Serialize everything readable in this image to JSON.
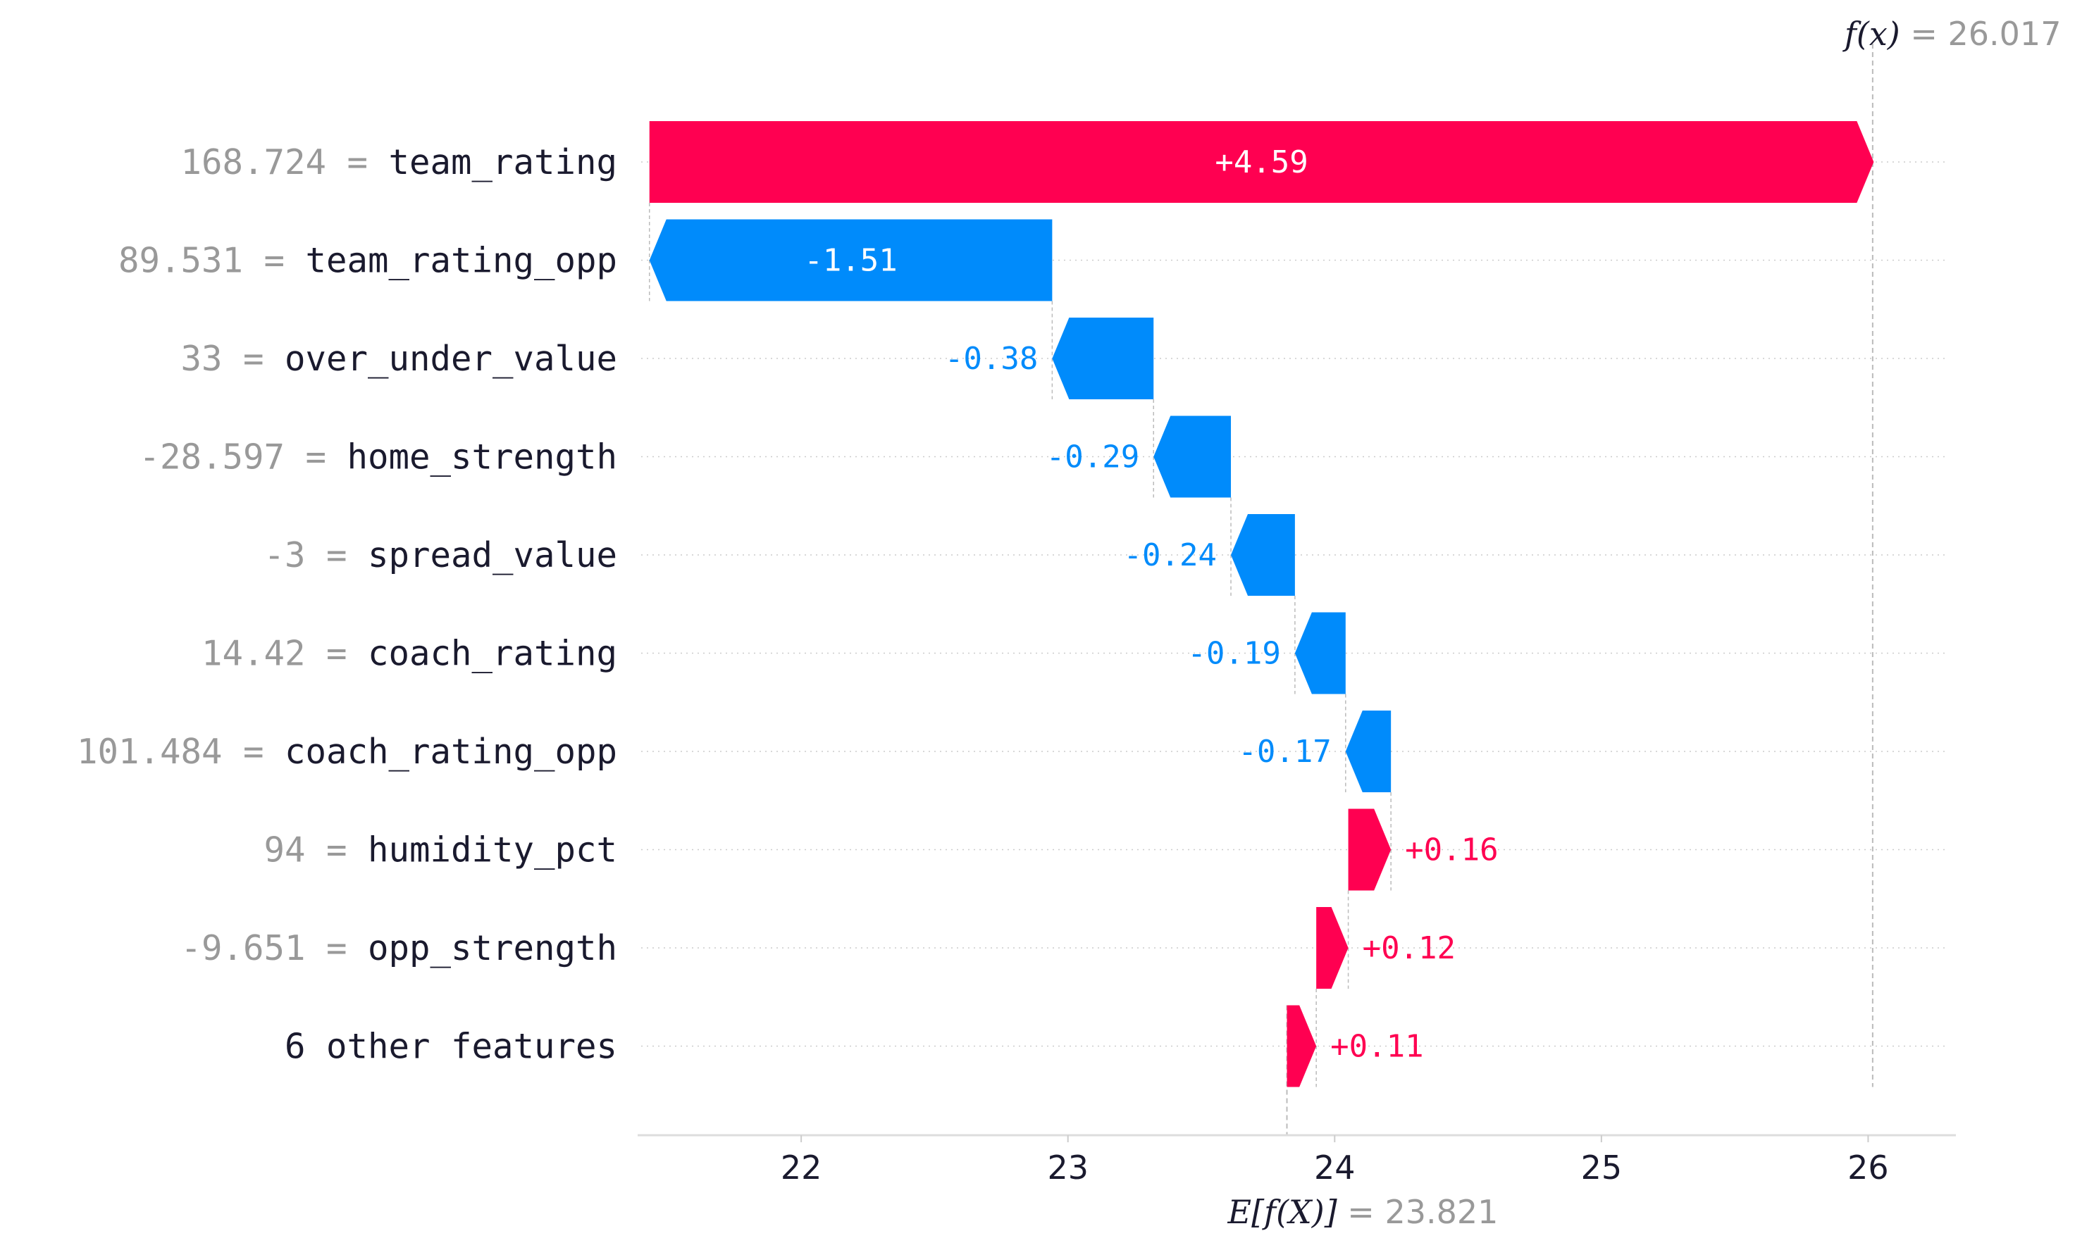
{
  "chart_data": {
    "type": "waterfall",
    "base_value": 23.821,
    "output_value": 26.017,
    "base_label": "E[f(X)]",
    "output_label": "f(x)",
    "base_value_text": "= 23.821",
    "output_value_text": "= 26.017",
    "xlim": [
      21.4,
      26.3
    ],
    "xticks": [
      22,
      23,
      24,
      25,
      26
    ],
    "xtick_labels": [
      "22",
      "23",
      "24",
      "25",
      "26"
    ],
    "features": [
      {
        "value_text": "168.724",
        "name": "team_rating",
        "contribution": 4.59,
        "label": "+4.59"
      },
      {
        "value_text": "89.531",
        "name": "team_rating_opp",
        "contribution": -1.51,
        "label": "-1.51"
      },
      {
        "value_text": "33",
        "name": "over_under_value",
        "contribution": -0.38,
        "label": "-0.38"
      },
      {
        "value_text": "-28.597",
        "name": "home_strength",
        "contribution": -0.29,
        "label": "-0.29"
      },
      {
        "value_text": "-3",
        "name": "spread_value",
        "contribution": -0.24,
        "label": "-0.24"
      },
      {
        "value_text": "14.42",
        "name": "coach_rating",
        "contribution": -0.19,
        "label": "-0.19"
      },
      {
        "value_text": "101.484",
        "name": "coach_rating_opp",
        "contribution": -0.17,
        "label": "-0.17"
      },
      {
        "value_text": "94",
        "name": "humidity_pct",
        "contribution": 0.16,
        "label": "+0.16"
      },
      {
        "value_text": "-9.651",
        "name": "opp_strength",
        "contribution": 0.12,
        "label": "+0.12"
      },
      {
        "value_text": "",
        "name": "6 other features",
        "contribution": 0.11,
        "label": "+0.11"
      }
    ],
    "colors": {
      "positive": "#ff0051",
      "negative": "#008bfb",
      "value_gray": "#999999",
      "text": "#1a1a2e",
      "grid": "#cccccc"
    }
  }
}
